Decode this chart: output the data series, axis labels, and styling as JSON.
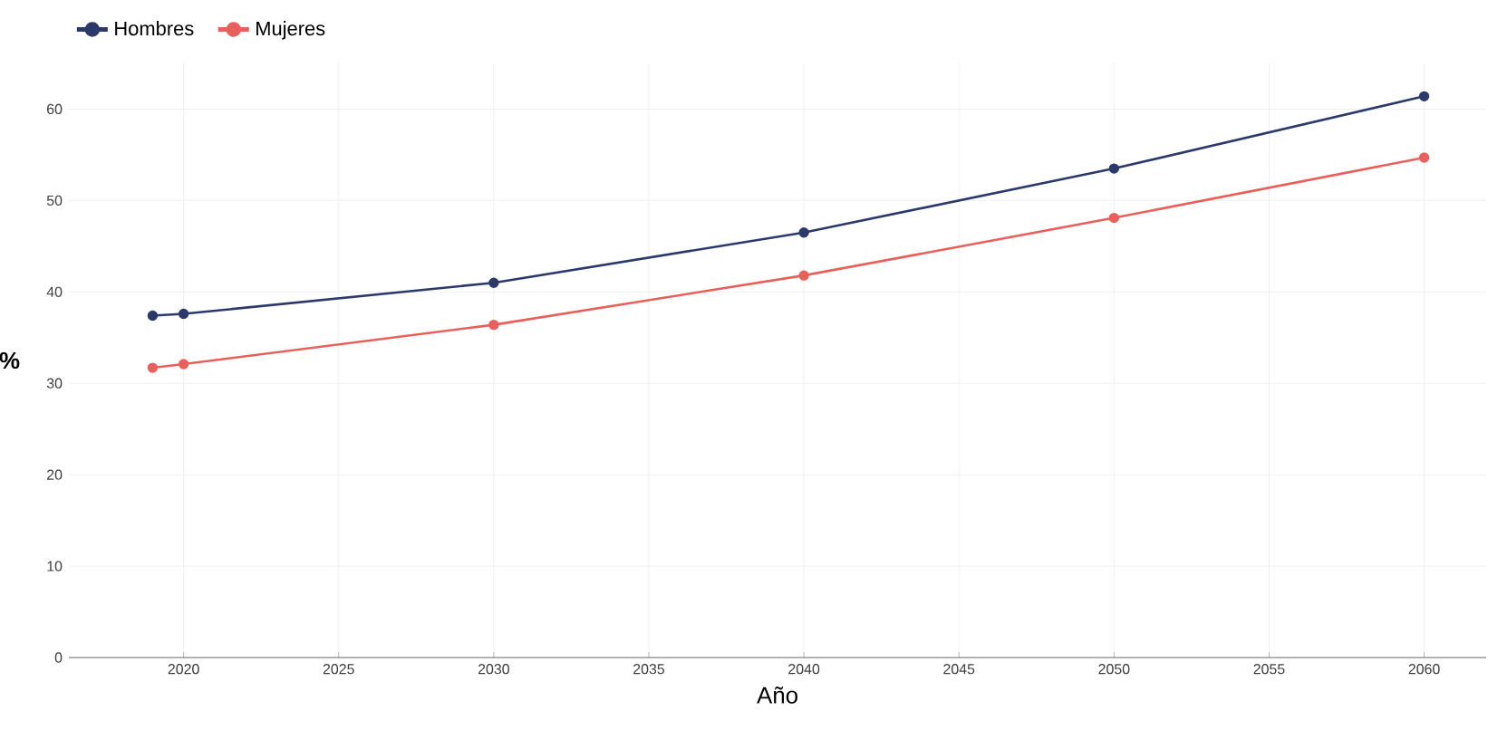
{
  "chart_data": {
    "type": "line",
    "xlabel": "Año",
    "ylabel": "%",
    "x": [
      2019,
      2020,
      2030,
      2040,
      2050,
      2060
    ],
    "series": [
      {
        "name": "Hombres",
        "color": "#2b3a6b",
        "values": [
          37.4,
          37.6,
          41.0,
          46.5,
          53.5,
          61.4
        ]
      },
      {
        "name": "Mujeres",
        "color": "#e8605c",
        "values": [
          31.7,
          32.1,
          36.4,
          41.8,
          48.1,
          54.7
        ]
      }
    ],
    "xlim": [
      2016.3,
      2062
    ],
    "ylim": [
      0,
      65
    ],
    "xticks": [
      2020,
      2025,
      2030,
      2035,
      2040,
      2045,
      2050,
      2055,
      2060
    ],
    "yticks": [
      0,
      10,
      20,
      30,
      40,
      50,
      60
    ],
    "grid": true,
    "legend": "top left",
    "marker": "circle",
    "line_style": "solid"
  }
}
